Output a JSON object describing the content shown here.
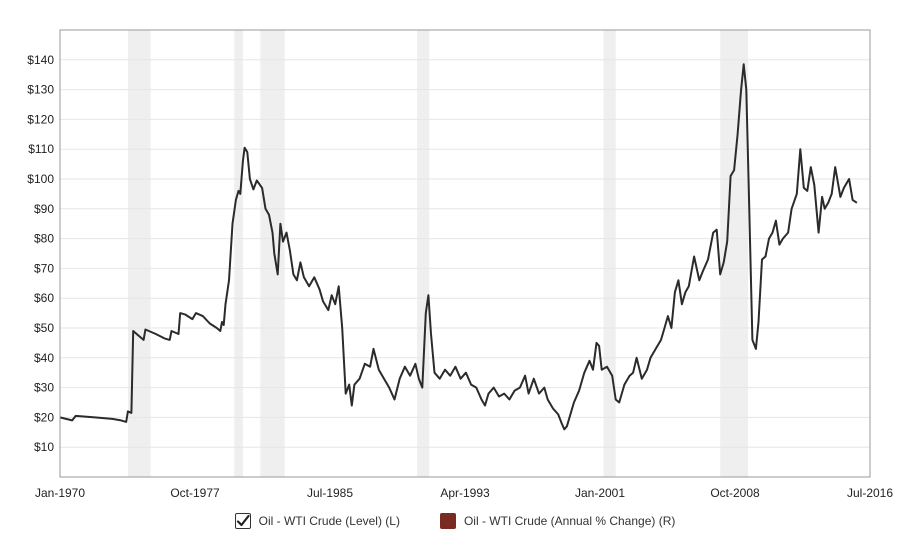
{
  "chart_data": {
    "type": "line",
    "x_axis": {
      "tick_labels": [
        "Jan-1970",
        "Oct-1977",
        "Jul-1985",
        "Apr-1993",
        "Jan-2001",
        "Oct-2008",
        "Jul-2016"
      ],
      "tick_years": [
        1970.0,
        1977.75,
        1985.5,
        1993.25,
        2001.0,
        2008.75,
        2016.5
      ],
      "range": [
        1970.0,
        2016.5
      ]
    },
    "y_axis": {
      "tick_labels": [
        "$10",
        "$20",
        "$30",
        "$40",
        "$50",
        "$60",
        "$70",
        "$80",
        "$90",
        "$100",
        "$110",
        "$120",
        "$130",
        "$140"
      ],
      "tick_values": [
        10,
        20,
        30,
        40,
        50,
        60,
        70,
        80,
        90,
        100,
        110,
        120,
        130,
        140
      ],
      "range": [
        0,
        150
      ]
    },
    "grid": "horizontal",
    "recessions": [
      {
        "start": 1973.9,
        "end": 1975.2
      },
      {
        "start": 1980.0,
        "end": 1980.5
      },
      {
        "start": 1981.5,
        "end": 1982.9
      },
      {
        "start": 1990.5,
        "end": 1991.2
      },
      {
        "start": 2001.2,
        "end": 2001.9
      },
      {
        "start": 2007.9,
        "end": 2009.5
      }
    ],
    "series": [
      {
        "name": "Oil - WTI Crude (Level) (L)",
        "color": "#2b2b2b",
        "points": [
          [
            1970.0,
            20
          ],
          [
            1970.7,
            19
          ],
          [
            1970.9,
            20.5
          ],
          [
            1972.0,
            20
          ],
          [
            1973.0,
            19.5
          ],
          [
            1973.5,
            19
          ],
          [
            1973.8,
            18.5
          ],
          [
            1973.9,
            22
          ],
          [
            1974.1,
            21.5
          ],
          [
            1974.2,
            49
          ],
          [
            1974.5,
            47.5
          ],
          [
            1974.8,
            46
          ],
          [
            1974.9,
            49.5
          ],
          [
            1975.5,
            48
          ],
          [
            1976.0,
            46.5
          ],
          [
            1976.3,
            46
          ],
          [
            1976.4,
            49
          ],
          [
            1976.8,
            48
          ],
          [
            1976.9,
            55
          ],
          [
            1977.2,
            54.5
          ],
          [
            1977.6,
            53
          ],
          [
            1977.8,
            55
          ],
          [
            1978.2,
            54
          ],
          [
            1978.6,
            51.5
          ],
          [
            1979.0,
            50
          ],
          [
            1979.2,
            49
          ],
          [
            1979.3,
            52
          ],
          [
            1979.4,
            51
          ],
          [
            1979.5,
            58
          ],
          [
            1979.7,
            66
          ],
          [
            1979.9,
            85
          ],
          [
            1980.1,
            93
          ],
          [
            1980.25,
            96
          ],
          [
            1980.35,
            95
          ],
          [
            1980.5,
            106
          ],
          [
            1980.6,
            110.5
          ],
          [
            1980.75,
            109
          ],
          [
            1980.9,
            100
          ],
          [
            1981.1,
            96.5
          ],
          [
            1981.3,
            99.5
          ],
          [
            1981.6,
            97
          ],
          [
            1981.8,
            90
          ],
          [
            1982.0,
            88
          ],
          [
            1982.2,
            82
          ],
          [
            1982.3,
            75
          ],
          [
            1982.5,
            68
          ],
          [
            1982.65,
            85
          ],
          [
            1982.8,
            79
          ],
          [
            1983.0,
            82
          ],
          [
            1983.2,
            76
          ],
          [
            1983.4,
            68
          ],
          [
            1983.6,
            66
          ],
          [
            1983.8,
            72
          ],
          [
            1984.0,
            67
          ],
          [
            1984.3,
            64
          ],
          [
            1984.6,
            67
          ],
          [
            1984.9,
            63
          ],
          [
            1985.1,
            59
          ],
          [
            1985.4,
            56
          ],
          [
            1985.6,
            61
          ],
          [
            1985.8,
            58
          ],
          [
            1986.0,
            64
          ],
          [
            1986.2,
            50
          ],
          [
            1986.4,
            28
          ],
          [
            1986.6,
            31
          ],
          [
            1986.75,
            24
          ],
          [
            1986.9,
            31
          ],
          [
            1987.2,
            33
          ],
          [
            1987.5,
            38
          ],
          [
            1987.8,
            37
          ],
          [
            1988.0,
            43
          ],
          [
            1988.3,
            36
          ],
          [
            1988.6,
            33
          ],
          [
            1988.9,
            30
          ],
          [
            1989.2,
            26
          ],
          [
            1989.5,
            33
          ],
          [
            1989.8,
            37
          ],
          [
            1990.1,
            34
          ],
          [
            1990.4,
            38
          ],
          [
            1990.6,
            33
          ],
          [
            1990.8,
            30
          ],
          [
            1991.0,
            55
          ],
          [
            1991.15,
            61
          ],
          [
            1991.3,
            48
          ],
          [
            1991.5,
            35
          ],
          [
            1991.8,
            33
          ],
          [
            1992.1,
            36
          ],
          [
            1992.4,
            34
          ],
          [
            1992.7,
            37
          ],
          [
            1993.0,
            33
          ],
          [
            1993.3,
            35
          ],
          [
            1993.6,
            31
          ],
          [
            1993.9,
            30
          ],
          [
            1994.2,
            26
          ],
          [
            1994.4,
            24
          ],
          [
            1994.6,
            28
          ],
          [
            1994.9,
            30
          ],
          [
            1995.2,
            27
          ],
          [
            1995.5,
            28
          ],
          [
            1995.8,
            26
          ],
          [
            1996.1,
            29
          ],
          [
            1996.4,
            30
          ],
          [
            1996.7,
            34
          ],
          [
            1996.9,
            28
          ],
          [
            1997.2,
            33
          ],
          [
            1997.5,
            28
          ],
          [
            1997.8,
            30
          ],
          [
            1998.0,
            26
          ],
          [
            1998.3,
            23
          ],
          [
            1998.6,
            21
          ],
          [
            1998.8,
            18
          ],
          [
            1998.95,
            16
          ],
          [
            1999.1,
            17
          ],
          [
            1999.3,
            21
          ],
          [
            1999.5,
            25
          ],
          [
            1999.8,
            29
          ],
          [
            2000.1,
            35
          ],
          [
            2000.4,
            39
          ],
          [
            2000.6,
            36
          ],
          [
            2000.8,
            45
          ],
          [
            2000.95,
            44
          ],
          [
            2001.1,
            36
          ],
          [
            2001.4,
            37
          ],
          [
            2001.7,
            34
          ],
          [
            2001.9,
            26
          ],
          [
            2002.1,
            25
          ],
          [
            2002.4,
            31
          ],
          [
            2002.7,
            34
          ],
          [
            2002.9,
            35
          ],
          [
            2003.1,
            40
          ],
          [
            2003.4,
            33
          ],
          [
            2003.7,
            36
          ],
          [
            2003.9,
            40
          ],
          [
            2004.2,
            43
          ],
          [
            2004.5,
            46
          ],
          [
            2004.7,
            50
          ],
          [
            2004.9,
            54
          ],
          [
            2005.1,
            50
          ],
          [
            2005.3,
            62
          ],
          [
            2005.5,
            66
          ],
          [
            2005.7,
            58
          ],
          [
            2005.9,
            62
          ],
          [
            2006.1,
            64
          ],
          [
            2006.4,
            74
          ],
          [
            2006.7,
            66
          ],
          [
            2006.9,
            69
          ],
          [
            2007.2,
            73
          ],
          [
            2007.5,
            82
          ],
          [
            2007.7,
            83
          ],
          [
            2007.9,
            68
          ],
          [
            2008.1,
            72
          ],
          [
            2008.3,
            79
          ],
          [
            2008.5,
            101
          ],
          [
            2008.7,
            103
          ],
          [
            2008.9,
            115
          ],
          [
            2009.1,
            130
          ],
          [
            2009.25,
            138.5
          ],
          [
            2009.4,
            130
          ],
          [
            2009.55,
            95
          ],
          [
            2009.75,
            46
          ],
          [
            2009.95,
            43
          ],
          [
            2010.1,
            52
          ],
          [
            2010.3,
            73
          ],
          [
            2010.5,
            74
          ],
          [
            2010.7,
            80
          ],
          [
            2010.9,
            82
          ],
          [
            2011.1,
            86
          ],
          [
            2011.3,
            78
          ],
          [
            2011.5,
            80
          ],
          [
            2011.8,
            82
          ],
          [
            2012.0,
            90
          ],
          [
            2012.3,
            95
          ],
          [
            2012.5,
            110
          ],
          [
            2012.7,
            97
          ],
          [
            2012.9,
            96
          ],
          [
            2013.1,
            104
          ],
          [
            2013.3,
            98
          ],
          [
            2013.55,
            82
          ],
          [
            2013.75,
            94
          ],
          [
            2013.9,
            90
          ],
          [
            2014.1,
            92
          ],
          [
            2014.3,
            95
          ],
          [
            2014.5,
            104
          ],
          [
            2014.8,
            94
          ],
          [
            2015.0,
            97
          ],
          [
            2015.3,
            100
          ],
          [
            2015.5,
            93
          ],
          [
            2015.75,
            92
          ]
        ]
      },
      {
        "name": "Oil - WTI Crude (Annual % Change) (R)",
        "color": "#7b2a21",
        "points": []
      }
    ]
  },
  "legend": {
    "items": [
      {
        "label": "Oil - WTI Crude (Level) (L)",
        "checked": true,
        "color": "#2b2b2b"
      },
      {
        "label": "Oil - WTI Crude (Annual % Change) (R)",
        "checked": false,
        "color": "#7b2a21"
      }
    ]
  }
}
